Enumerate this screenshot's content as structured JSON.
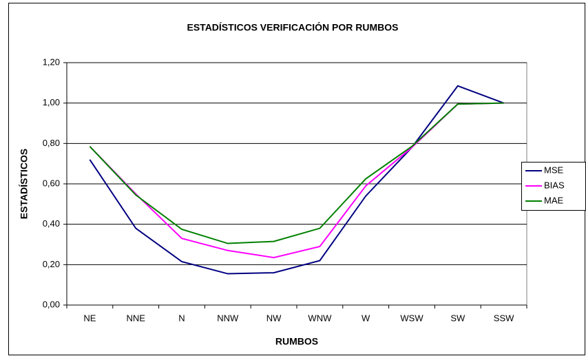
{
  "chart_data": {
    "type": "line",
    "title": "ESTADÍSTICOS VERIFICACIÓN POR RUMBOS",
    "x_label": "RUMBOS",
    "y_label": "ESTADÍSTICOS",
    "categories": [
      "NE",
      "NNE",
      "N",
      "NNW",
      "NW",
      "WNW",
      "W",
      "WSW",
      "SW",
      "SSW"
    ],
    "series": [
      {
        "name": "MSE",
        "color": "#000080",
        "values": [
          0.72,
          0.38,
          0.215,
          0.155,
          0.16,
          0.22,
          0.54,
          0.78,
          1.085,
          1.0
        ]
      },
      {
        "name": "BIAS",
        "color": "#ff00ff",
        "values": [
          0.785,
          0.55,
          0.33,
          0.27,
          0.235,
          0.29,
          0.59,
          0.78,
          0.995,
          1.0
        ]
      },
      {
        "name": "MAE",
        "color": "#008000",
        "values": [
          0.785,
          0.545,
          0.375,
          0.305,
          0.315,
          0.38,
          0.625,
          0.785,
          0.995,
          1.0
        ]
      }
    ],
    "ylim": [
      0,
      1.2
    ],
    "yticks": [
      {
        "value": 0,
        "label": "0,00"
      },
      {
        "value": 0.2,
        "label": "0,20"
      },
      {
        "value": 0.4,
        "label": "0,40"
      },
      {
        "value": 0.6,
        "label": "0,60"
      },
      {
        "value": 0.8,
        "label": "0,80"
      },
      {
        "value": 1.0,
        "label": "1,00"
      },
      {
        "value": 1.2,
        "label": "1,20"
      }
    ],
    "grid": true,
    "legend": "right"
  }
}
